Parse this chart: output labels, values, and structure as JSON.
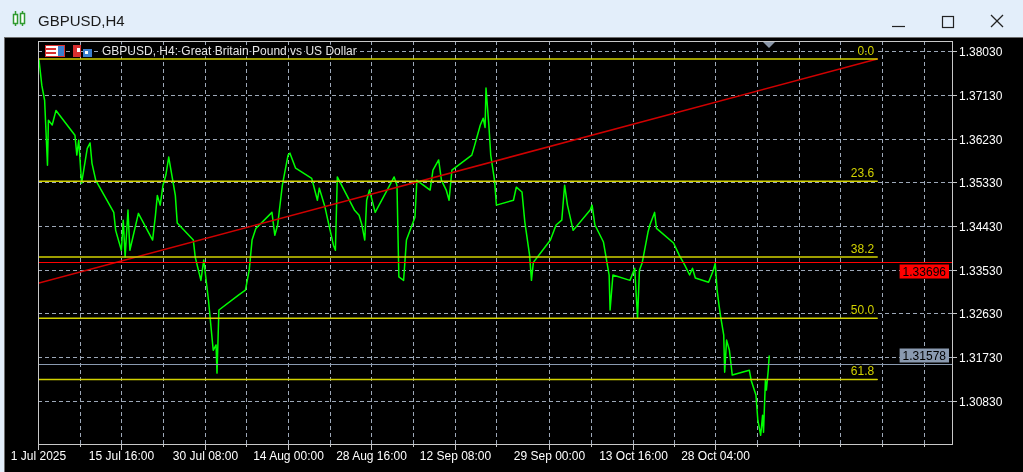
{
  "chart_data": {
    "type": "line",
    "title": "GBPUSD,H4",
    "subtitle": "GBPUSD, H4: Great Britain Pound vs US Dollar",
    "xlim": [
      "2025-07-01T00:00",
      "2025-12-08T20:00"
    ],
    "xticks": [
      {
        "value": "2025-07-01T00:00",
        "label": "1 Jul 2025"
      },
      {
        "value": "2025-07-08T08:00",
        "label": null
      },
      {
        "value": "2025-07-15T16:00",
        "label": "15 Jul 16:00"
      },
      {
        "value": "2025-07-23T00:00",
        "label": null
      },
      {
        "value": "2025-07-30T08:00",
        "label": "30 Jul 08:00"
      },
      {
        "value": "2025-08-06T16:00",
        "label": null
      },
      {
        "value": "2025-08-14T00:00",
        "label": "14 Aug 00:00"
      },
      {
        "value": "2025-08-21T08:00",
        "label": null
      },
      {
        "value": "2025-08-28T16:00",
        "label": "28 Aug 16:00"
      },
      {
        "value": "2025-09-05T00:00",
        "label": null
      },
      {
        "value": "2025-09-12T08:00",
        "label": "12 Sep 08:00"
      },
      {
        "value": "2025-09-19T16:00",
        "label": null
      },
      {
        "value": "2025-09-29T00:00",
        "label": "29 Sep 00:00"
      },
      {
        "value": "2025-10-06T08:00",
        "label": null
      },
      {
        "value": "2025-10-13T16:00",
        "label": "13 Oct 16:00"
      },
      {
        "value": "2025-10-21T00:00",
        "label": null
      },
      {
        "value": "2025-10-28T04:00",
        "label": "28 Oct 04:00"
      },
      {
        "value": "2025-11-04T12:00",
        "label": null
      },
      {
        "value": "2025-11-11T20:00",
        "label": null
      },
      {
        "value": "2025-11-19T04:00",
        "label": null
      },
      {
        "value": "2025-11-26T12:00",
        "label": null
      },
      {
        "value": "2025-12-03T20:00",
        "label": null
      }
    ],
    "ylim": [
      1.2994,
      1.3824
    ],
    "yticks": [
      {
        "value": 1.3803,
        "label": "1.38030"
      },
      {
        "value": 1.3713,
        "label": "1.37130"
      },
      {
        "value": 1.3623,
        "label": "1.36230"
      },
      {
        "value": 1.3533,
        "label": "1.35330"
      },
      {
        "value": 1.3443,
        "label": "1.34430"
      },
      {
        "value": 1.3353,
        "label": "1.33530"
      },
      {
        "value": 1.3263,
        "label": "1.32630"
      },
      {
        "value": 1.3173,
        "label": "1.31730"
      },
      {
        "value": 1.3083,
        "label": "1.30830"
      }
    ],
    "grid": true,
    "series": [
      {
        "color": "#00ff00",
        "x": [
          "2025-07-01T04:00",
          "2025-07-01T16:00",
          "2025-07-02T04:00",
          "2025-07-02T16:00",
          "2025-07-02T20:00",
          "2025-07-03T12:00",
          "2025-07-04T04:00",
          "2025-07-07T12:00",
          "2025-07-07T20:00",
          "2025-07-08T04:00",
          "2025-07-08T16:00",
          "2025-07-09T16:00",
          "2025-07-10T04:00",
          "2025-07-10T12:00",
          "2025-07-11T04:00",
          "2025-07-14T08:00",
          "2025-07-14T16:00",
          "2025-07-15T16:00",
          "2025-07-16T00:00",
          "2025-07-16T08:00",
          "2025-07-16T20:00",
          "2025-07-17T04:00",
          "2025-07-18T16:00",
          "2025-07-21T04:00",
          "2025-07-21T16:00",
          "2025-07-22T00:00",
          "2025-07-22T12:00",
          "2025-07-23T00:00",
          "2025-07-23T12:00",
          "2025-07-24T00:00",
          "2025-07-25T04:00",
          "2025-07-25T12:00",
          "2025-07-28T08:00",
          "2025-07-28T16:00",
          "2025-07-29T16:00",
          "2025-07-30T04:00",
          "2025-07-31T00:00",
          "2025-07-31T12:00",
          "2025-07-31T20:00",
          "2025-08-01T08:00",
          "2025-08-01T12:00",
          "2025-08-01T20:00",
          "2025-08-05T08:00",
          "2025-08-06T12:00",
          "2025-08-07T04:00",
          "2025-08-07T16:00",
          "2025-08-08T08:00",
          "2025-08-11T04:00",
          "2025-08-11T16:00",
          "2025-08-12T04:00",
          "2025-08-13T00:00",
          "2025-08-13T12:00",
          "2025-08-14T00:00",
          "2025-08-14T08:00",
          "2025-08-15T08:00",
          "2025-08-18T04:00",
          "2025-08-19T04:00",
          "2025-08-19T12:00",
          "2025-08-20T12:00",
          "2025-08-21T00:00",
          "2025-08-22T00:00",
          "2025-08-22T08:00",
          "2025-08-22T16:00",
          "2025-08-25T16:00",
          "2025-08-26T12:00",
          "2025-08-27T00:00",
          "2025-08-27T12:00",
          "2025-08-27T20:00",
          "2025-08-28T08:00",
          "2025-08-29T08:00",
          "2025-09-01T04:00",
          "2025-09-01T16:00",
          "2025-09-02T04:00",
          "2025-09-02T12:00",
          "2025-09-03T08:00",
          "2025-09-03T20:00",
          "2025-09-05T08:00",
          "2025-09-05T16:00",
          "2025-09-08T00:00",
          "2025-09-08T12:00",
          "2025-09-09T12:00",
          "2025-09-10T00:00",
          "2025-09-10T20:00",
          "2025-09-11T08:00",
          "2025-09-11T20:00",
          "2025-09-15T08:00",
          "2025-09-15T20:00",
          "2025-09-16T20:00",
          "2025-09-17T08:00",
          "2025-09-17T16:00",
          "2025-09-17T20:00",
          "2025-09-18T08:00",
          "2025-09-18T16:00",
          "2025-09-19T08:00",
          "2025-09-19T16:00",
          "2025-09-22T16:00",
          "2025-09-23T04:00",
          "2025-09-24T04:00",
          "2025-09-24T16:00",
          "2025-09-25T12:00",
          "2025-09-25T20:00",
          "2025-09-26T04:00",
          "2025-09-29T04:00",
          "2025-09-30T04:00",
          "2025-10-01T04:00",
          "2025-10-01T16:00",
          "2025-10-02T04:00",
          "2025-10-03T04:00",
          "2025-10-06T04:00",
          "2025-10-06T12:00",
          "2025-10-07T00:00",
          "2025-10-08T12:00",
          "2025-10-09T12:00",
          "2025-10-09T16:00",
          "2025-10-10T04:00",
          "2025-10-13T04:00",
          "2025-10-14T00:00",
          "2025-10-14T12:00",
          "2025-10-14T20:00",
          "2025-10-15T08:00",
          "2025-10-16T08:00",
          "2025-10-16T16:00",
          "2025-10-17T12:00",
          "2025-10-17T20:00",
          "2025-10-20T20:00",
          "2025-10-21T20:00",
          "2025-10-22T20:00",
          "2025-10-23T16:00",
          "2025-10-24T04:00",
          "2025-10-24T16:00",
          "2025-10-27T00:00",
          "2025-10-27T20:00",
          "2025-10-28T04:00",
          "2025-10-28T12:00",
          "2025-10-28T20:00",
          "2025-10-29T04:00",
          "2025-10-29T16:00",
          "2025-10-29T20:00",
          "2025-10-30T04:00",
          "2025-10-30T16:00",
          "2025-10-31T04:00",
          "2025-11-03T04:00",
          "2025-11-03T12:00",
          "2025-11-04T08:00",
          "2025-11-04T16:00",
          "2025-11-05T04:00",
          "2025-11-05T12:00",
          "2025-11-05T16:00",
          "2025-11-06T00:00",
          "2025-11-06T04:00",
          "2025-11-06T12:00",
          "2025-11-06T16:00"
        ],
        "values": [
          1.3786,
          1.3733,
          1.3702,
          1.3568,
          1.3661,
          1.3651,
          1.3681,
          1.363,
          1.3589,
          1.362,
          1.3531,
          1.3603,
          1.3614,
          1.3572,
          1.3537,
          1.3471,
          1.3434,
          1.3393,
          1.3455,
          1.3379,
          1.3476,
          1.3393,
          1.3469,
          1.3414,
          1.3465,
          1.3506,
          1.3486,
          1.3527,
          1.3548,
          1.3585,
          1.3506,
          1.3449,
          1.3414,
          1.3379,
          1.3331,
          1.3373,
          1.329,
          1.3228,
          1.3187,
          1.3198,
          1.314,
          1.327,
          1.3301,
          1.3311,
          1.3352,
          1.3414,
          1.3438,
          1.3471,
          1.3424,
          1.3445,
          1.3527,
          1.3558,
          1.3589,
          1.3593,
          1.3562,
          1.3541,
          1.3496,
          1.3521,
          1.3482,
          1.3455,
          1.3403,
          1.3393,
          1.3544,
          1.3476,
          1.3465,
          1.3445,
          1.3414,
          1.3496,
          1.3517,
          1.3471,
          1.3533,
          1.3544,
          1.3527,
          1.3338,
          1.3331,
          1.3414,
          1.3461,
          1.3537,
          1.3517,
          1.3558,
          1.3579,
          1.3537,
          1.3517,
          1.3496,
          1.3558,
          1.3589,
          1.3609,
          1.3651,
          1.3665,
          1.3646,
          1.3727,
          1.3651,
          1.3589,
          1.3537,
          1.3486,
          1.3496,
          1.3523,
          1.3513,
          1.3451,
          1.3383,
          1.3331,
          1.3368,
          1.3414,
          1.3445,
          1.3455,
          1.3527,
          1.3486,
          1.3434,
          1.3476,
          1.3486,
          1.3445,
          1.341,
          1.3342,
          1.327,
          1.3342,
          1.3331,
          1.3356,
          1.3253,
          1.3352,
          1.3368,
          1.343,
          1.3445,
          1.3471,
          1.3438,
          1.3408,
          1.3383,
          1.3362,
          1.3342,
          1.3356,
          1.3336,
          1.3327,
          1.3352,
          1.3366,
          1.3311,
          1.328,
          1.3253,
          1.3218,
          1.3142,
          1.3208,
          1.3187,
          1.3136,
          1.3146,
          1.3125,
          1.3095,
          1.3043,
          1.3012,
          1.3053,
          1.3018,
          1.3125,
          1.3105,
          1.3146,
          1.3175
        ]
      },
      {
        "color": "#d00000",
        "x": [
          "2025-07-01T00:00",
          "2025-11-25T16:00"
        ],
        "values": [
          1.3325,
          1.3787
        ]
      },
      {
        "name": "0.0",
        "color": "#d2d200",
        "x": [
          "2025-07-01T00:00",
          "2025-11-25T16:00"
        ],
        "values": [
          1.3787,
          1.3787
        ]
      },
      {
        "name": "23.6",
        "color": "#d2d200",
        "x": [
          "2025-07-01T00:00",
          "2025-11-25T16:00"
        ],
        "values": [
          1.3535,
          1.3535
        ]
      },
      {
        "name": "38.2",
        "color": "#d2d200",
        "x": [
          "2025-07-01T00:00",
          "2025-11-25T16:00"
        ],
        "values": [
          1.3379,
          1.3379
        ]
      },
      {
        "name": "50.0",
        "color": "#d2d200",
        "x": [
          "2025-07-01T00:00",
          "2025-11-25T16:00"
        ],
        "values": [
          1.3253,
          1.3253
        ]
      },
      {
        "name": "61.8",
        "color": "#d2d200",
        "x": [
          "2025-07-01T00:00",
          "2025-11-25T16:00"
        ],
        "values": [
          1.3127,
          1.3127
        ]
      }
    ],
    "ref_lines": [
      {
        "axis": "y",
        "value": 1.33696,
        "label": "1.33696",
        "color": "#ff0000"
      },
      {
        "axis": "y",
        "value": 1.31578,
        "label": "1.31578",
        "color": "#8a9ab0"
      }
    ]
  }
}
